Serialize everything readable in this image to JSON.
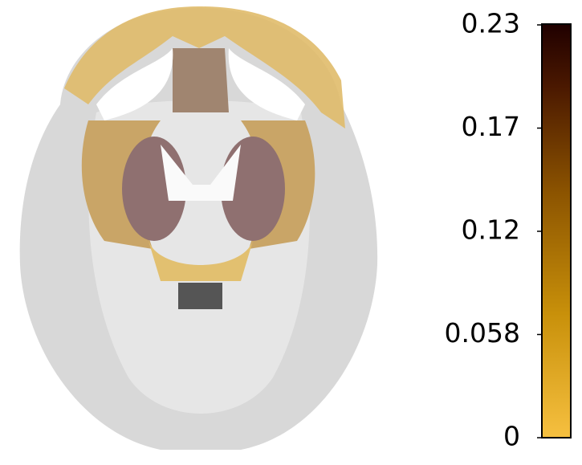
{
  "colorbar": {
    "lim": [
      0,
      0.23
    ],
    "ticks": [
      0,
      {
        "value": 0.0575,
        "label": "0.058"
      },
      {
        "value": 0.115,
        "label": "0.12"
      },
      {
        "value": 0.1725,
        "label": "0.17"
      },
      {
        "value": 0.23,
        "label": "0.23"
      }
    ]
  }
}
